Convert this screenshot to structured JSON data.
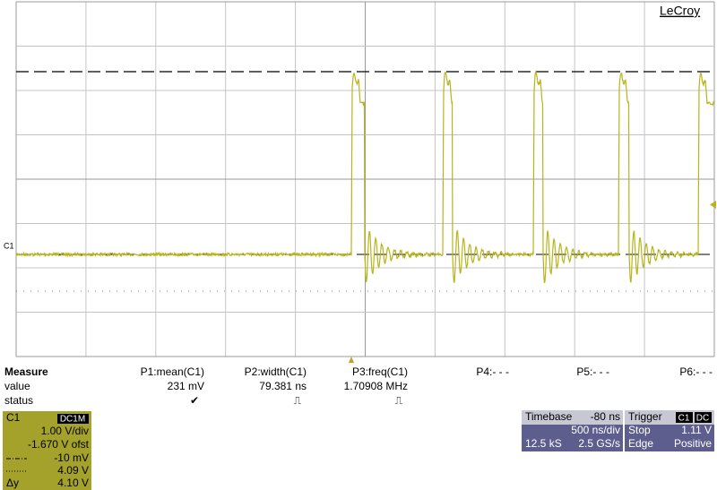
{
  "logo": "LeCroy",
  "channel_marker": "C1",
  "measure": {
    "title": "Measure",
    "row_labels": [
      "value",
      "status"
    ],
    "columns": [
      {
        "name": "P1:mean(C1)",
        "value": "231 mV",
        "status": "✔"
      },
      {
        "name": "P2:width(C1)",
        "value": "79.381 ns",
        "status": "⎍"
      },
      {
        "name": "P3:freq(C1)",
        "value": "1.70908 MHz",
        "status": "⎍"
      },
      {
        "name": "P4:- - -"
      },
      {
        "name": "P5:- - -"
      },
      {
        "name": "P6:- - -"
      }
    ]
  },
  "channel": {
    "name": "C1",
    "coupling": "DC1M",
    "scale": "1.00 V/div",
    "offset": "-1.670 V ofst",
    "cursor1": "-10 mV",
    "cursor2": "4.09 V",
    "delta_label": "Δy",
    "delta": "4.10 V"
  },
  "timebase": {
    "title": "Timebase",
    "delay": "-80 ns",
    "scale": "500 ns/div",
    "samples": "12.5 kS",
    "rate": "2.5 GS/s"
  },
  "trigger": {
    "title": "Trigger",
    "source": "C1",
    "coupling": "DC",
    "mode": "Stop",
    "level": "1.11 V",
    "type": "Edge",
    "slope": "Positive"
  }
}
